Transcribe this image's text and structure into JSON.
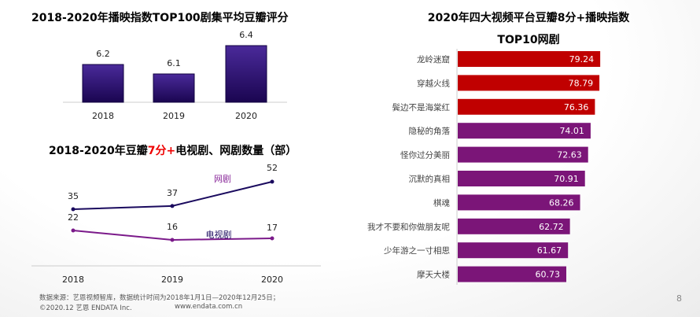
{
  "chart_data": [
    {
      "type": "bar",
      "title": "2018-2020年播映指数TOP100剧集平均豆瓣评分",
      "categories": [
        "2018",
        "2019",
        "2020"
      ],
      "values": [
        6.2,
        6.1,
        6.4
      ],
      "colors": {
        "bar": "#2a0a6b"
      }
    },
    {
      "type": "line",
      "title_parts": [
        "2018-2020年豆瓣",
        "7分+",
        "电视剧、网剧数量（部）"
      ],
      "categories": [
        "2018",
        "2019",
        "2020"
      ],
      "series": [
        {
          "name": "网剧",
          "values": [
            35,
            37,
            52
          ],
          "color": "#1a0a5e"
        },
        {
          "name": "电视剧",
          "values": [
            22,
            16,
            17
          ],
          "color": "#7b1a8a"
        }
      ]
    },
    {
      "type": "bar",
      "orientation": "horizontal",
      "title_lines": [
        "2020年四大视频平台豆瓣8分+播映指数",
        "TOP10网剧"
      ],
      "categories": [
        "龙岭迷窟",
        "穿越火线",
        "鬓边不是海棠红",
        "隐秘的角落",
        "怪你过分美丽",
        "沉默的真相",
        "棋魂",
        "我才不要和你做朋友呢",
        "少年游之一寸相思",
        "摩天大楼"
      ],
      "values": [
        79.24,
        78.79,
        76.36,
        74.01,
        72.63,
        70.91,
        68.26,
        62.72,
        61.67,
        60.73
      ],
      "colors": {
        "top3": "#c00000",
        "rest": "#7b1578"
      }
    }
  ],
  "footer": {
    "source": "数据来源：艺恩视频智库，数据统计时间为2018年1月1日—2020年12月25日；",
    "copyright": "©2020.12 艺恩 ENDATA Inc.",
    "url": "www.endata.com.cn"
  },
  "page_number": "8"
}
